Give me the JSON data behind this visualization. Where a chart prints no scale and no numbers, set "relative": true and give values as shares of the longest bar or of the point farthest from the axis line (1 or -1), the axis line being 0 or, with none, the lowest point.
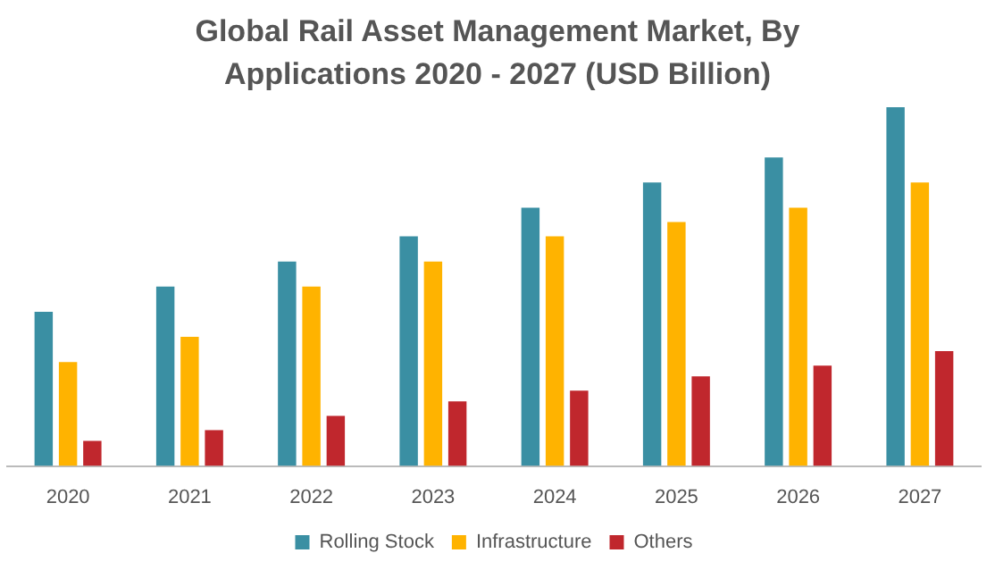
{
  "chart_data": {
    "type": "bar",
    "title": "Global Rail Asset Management Market, By Applications 2020 - 2027 (USD Billion)",
    "relative": true,
    "categories": [
      "2020",
      "2021",
      "2022",
      "2023",
      "2024",
      "2025",
      "2026",
      "2027"
    ],
    "series": [
      {
        "name": "Rolling Stock",
        "color": "#3a8fa3",
        "values": [
          0.43,
          0.5,
          0.57,
          0.64,
          0.72,
          0.79,
          0.86,
          1
        ]
      },
      {
        "name": "Infrastructure",
        "color": "#ffb300",
        "values": [
          0.29,
          0.36,
          0.5,
          0.57,
          0.64,
          0.68,
          0.72,
          0.79
        ]
      },
      {
        "name": "Others",
        "color": "#c0272d",
        "values": [
          0.07,
          0.1,
          0.14,
          0.18,
          0.21,
          0.25,
          0.28,
          0.32
        ]
      }
    ],
    "grid": false,
    "legend": "bottom"
  }
}
